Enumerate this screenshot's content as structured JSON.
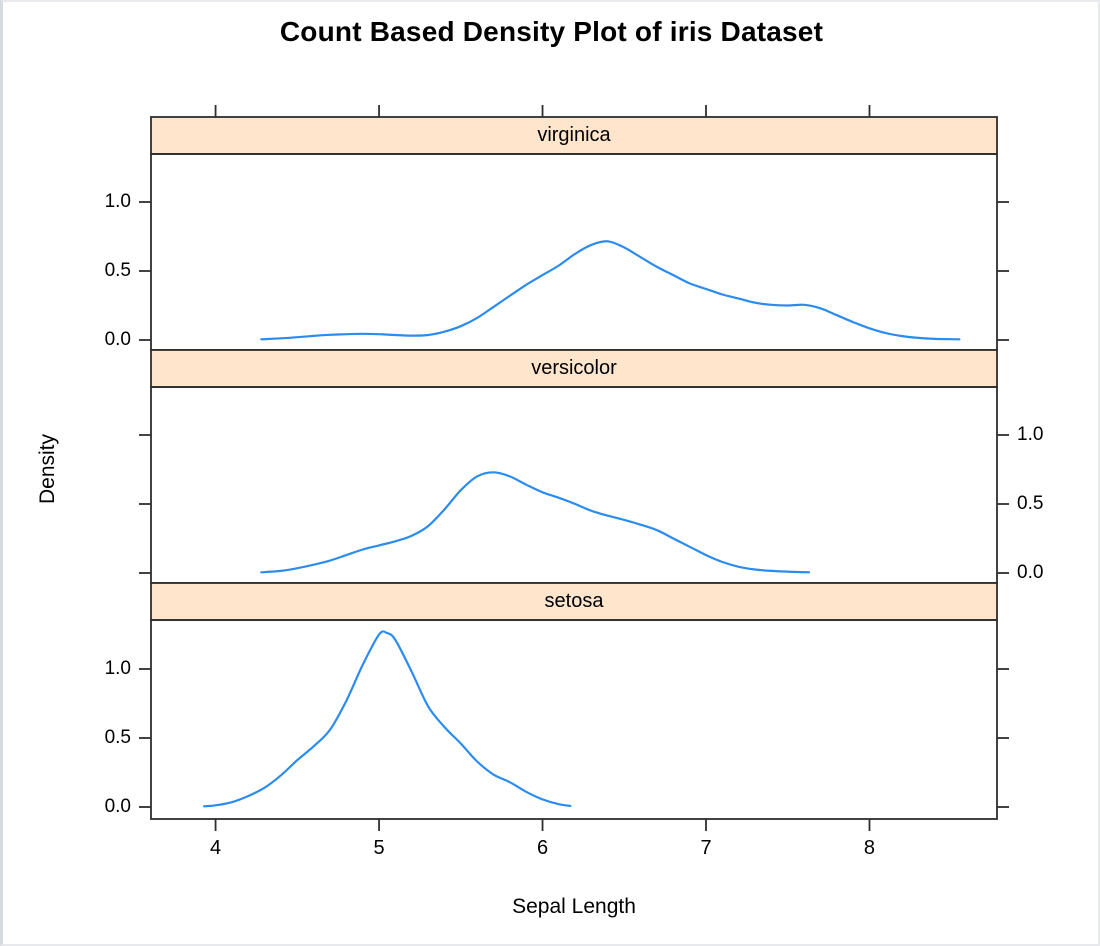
{
  "window": {
    "background": "#ffffff",
    "frame_border_color": "#d7dade"
  },
  "chart_data": {
    "type": "line",
    "subtype": "lattice-density-panels",
    "title": "Count Based Density Plot of iris Dataset",
    "xlabel": "Sepal Length",
    "ylabel": "Density",
    "x_ticks": [
      4,
      5,
      6,
      7,
      8
    ],
    "x_tick_labels": [
      "4",
      "5",
      "6",
      "7",
      "8"
    ],
    "y_ticks": [
      0.0,
      0.5,
      1.0
    ],
    "y_tick_labels": [
      "0.0",
      "0.5",
      "1.0"
    ],
    "xlim": [
      3.605,
      8.78
    ],
    "ylim": [
      -0.07,
      1.35
    ],
    "grid": false,
    "legend": "none",
    "line_color": "#2b8cee",
    "strip_fill": "#ffe5cc",
    "panel_border_color": "#2e2e2e",
    "panels": [
      {
        "label": "virginica",
        "y_tick_label_side": "left",
        "peak": {
          "x": 6.4,
          "density": 0.71
        },
        "points": [
          [
            4.28,
            0.005
          ],
          [
            4.4,
            0.012
          ],
          [
            4.5,
            0.02
          ],
          [
            4.6,
            0.03
          ],
          [
            4.7,
            0.038
          ],
          [
            4.8,
            0.042
          ],
          [
            4.9,
            0.045
          ],
          [
            5.0,
            0.042
          ],
          [
            5.1,
            0.036
          ],
          [
            5.2,
            0.032
          ],
          [
            5.3,
            0.036
          ],
          [
            5.4,
            0.06
          ],
          [
            5.5,
            0.1
          ],
          [
            5.6,
            0.16
          ],
          [
            5.7,
            0.24
          ],
          [
            5.8,
            0.32
          ],
          [
            5.9,
            0.4
          ],
          [
            6.0,
            0.47
          ],
          [
            6.1,
            0.54
          ],
          [
            6.2,
            0.625
          ],
          [
            6.3,
            0.69
          ],
          [
            6.4,
            0.715
          ],
          [
            6.5,
            0.67
          ],
          [
            6.6,
            0.6
          ],
          [
            6.7,
            0.53
          ],
          [
            6.8,
            0.47
          ],
          [
            6.9,
            0.41
          ],
          [
            7.0,
            0.37
          ],
          [
            7.1,
            0.33
          ],
          [
            7.2,
            0.3
          ],
          [
            7.3,
            0.27
          ],
          [
            7.4,
            0.255
          ],
          [
            7.5,
            0.25
          ],
          [
            7.6,
            0.255
          ],
          [
            7.7,
            0.23
          ],
          [
            7.8,
            0.18
          ],
          [
            7.9,
            0.13
          ],
          [
            8.0,
            0.085
          ],
          [
            8.1,
            0.05
          ],
          [
            8.2,
            0.028
          ],
          [
            8.3,
            0.015
          ],
          [
            8.4,
            0.008
          ],
          [
            8.55,
            0.005
          ]
        ]
      },
      {
        "label": "versicolor",
        "y_tick_label_side": "right",
        "peak": {
          "x": 5.7,
          "density": 0.73
        },
        "points": [
          [
            4.28,
            0.005
          ],
          [
            4.4,
            0.015
          ],
          [
            4.5,
            0.035
          ],
          [
            4.6,
            0.06
          ],
          [
            4.7,
            0.09
          ],
          [
            4.8,
            0.13
          ],
          [
            4.9,
            0.17
          ],
          [
            5.0,
            0.2
          ],
          [
            5.1,
            0.23
          ],
          [
            5.2,
            0.27
          ],
          [
            5.3,
            0.34
          ],
          [
            5.4,
            0.46
          ],
          [
            5.5,
            0.6
          ],
          [
            5.6,
            0.7
          ],
          [
            5.7,
            0.73
          ],
          [
            5.8,
            0.7
          ],
          [
            5.9,
            0.64
          ],
          [
            6.0,
            0.585
          ],
          [
            6.1,
            0.545
          ],
          [
            6.2,
            0.5
          ],
          [
            6.3,
            0.45
          ],
          [
            6.4,
            0.415
          ],
          [
            6.5,
            0.385
          ],
          [
            6.6,
            0.35
          ],
          [
            6.7,
            0.31
          ],
          [
            6.8,
            0.25
          ],
          [
            6.9,
            0.19
          ],
          [
            7.0,
            0.13
          ],
          [
            7.1,
            0.08
          ],
          [
            7.2,
            0.045
          ],
          [
            7.3,
            0.025
          ],
          [
            7.4,
            0.015
          ],
          [
            7.5,
            0.01
          ],
          [
            7.63,
            0.005
          ]
        ]
      },
      {
        "label": "setosa",
        "y_tick_label_side": "left",
        "peak": {
          "x": 5.0,
          "density": 1.26
        },
        "points": [
          [
            3.93,
            0.005
          ],
          [
            4.0,
            0.012
          ],
          [
            4.1,
            0.035
          ],
          [
            4.2,
            0.08
          ],
          [
            4.3,
            0.14
          ],
          [
            4.4,
            0.23
          ],
          [
            4.5,
            0.34
          ],
          [
            4.6,
            0.44
          ],
          [
            4.7,
            0.56
          ],
          [
            4.8,
            0.77
          ],
          [
            4.9,
            1.03
          ],
          [
            5.0,
            1.25
          ],
          [
            5.05,
            1.26
          ],
          [
            5.1,
            1.21
          ],
          [
            5.2,
            0.98
          ],
          [
            5.3,
            0.73
          ],
          [
            5.4,
            0.58
          ],
          [
            5.5,
            0.46
          ],
          [
            5.6,
            0.33
          ],
          [
            5.7,
            0.235
          ],
          [
            5.8,
            0.18
          ],
          [
            5.9,
            0.11
          ],
          [
            6.0,
            0.055
          ],
          [
            6.1,
            0.02
          ],
          [
            6.17,
            0.008
          ]
        ]
      }
    ]
  }
}
